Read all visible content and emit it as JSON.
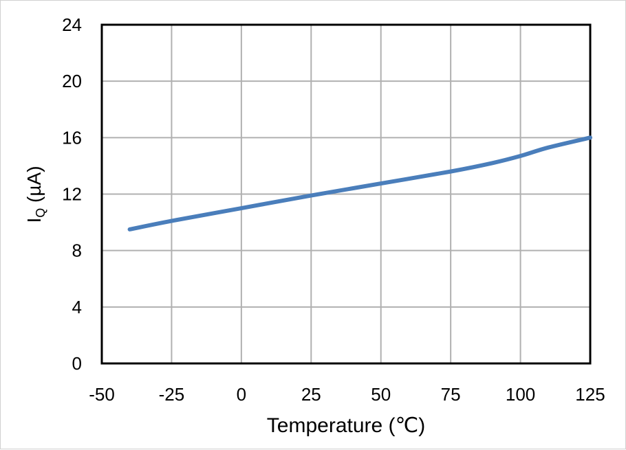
{
  "chart_data": {
    "type": "line",
    "title": "",
    "xlabel": "Temperature (℃)",
    "ylabel_main": "I",
    "ylabel_sub": "Q",
    "ylabel_unit": " (µA)",
    "xlim": [
      -50,
      125
    ],
    "ylim": [
      0,
      24
    ],
    "xticks": [
      -50,
      -25,
      0,
      25,
      50,
      75,
      100,
      125
    ],
    "yticks": [
      0,
      4,
      8,
      12,
      16,
      20,
      24
    ],
    "grid": true,
    "series": [
      {
        "color": "#4a7ebb",
        "x": [
          -40,
          -25,
          0,
          25,
          50,
          75,
          90,
          100,
          110,
          125
        ],
        "y": [
          9.5,
          10.1,
          11.0,
          11.9,
          12.75,
          13.6,
          14.2,
          14.7,
          15.3,
          16.0
        ]
      }
    ]
  }
}
